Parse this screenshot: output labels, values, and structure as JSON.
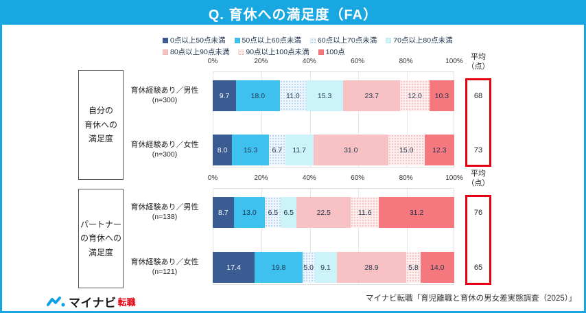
{
  "title": "Q. 育休への満足度（FA）",
  "colors": {
    "title_bar": "#18a7e0",
    "frame": "#18a7e0",
    "red_box": "#e60012",
    "logo_blue": "#0e9fe6",
    "logo_red": "#e60012",
    "segments": [
      {
        "fill": "#3b5c93",
        "text": "#ffffff"
      },
      {
        "fill": "#3fc1f0",
        "text": "#20364f"
      },
      {
        "fill": "#eef5fc",
        "dot": "#a9cfee",
        "text": "#20364f"
      },
      {
        "fill": "#ccf3f9",
        "text": "#20364f"
      },
      {
        "fill": "#f8c2c5",
        "text": "#20364f"
      },
      {
        "fill": "#fdeeee",
        "dot": "#f4b5ba",
        "text": "#20364f"
      },
      {
        "fill": "#f5787e",
        "text": "#20364f"
      }
    ]
  },
  "chart_data": {
    "type": "bar",
    "stacked": true,
    "orientation": "horizontal",
    "unit": "%",
    "x_ticks": [
      "0%",
      "20%",
      "40%",
      "60%",
      "80%",
      "100%"
    ],
    "bands": [
      "0点以上50点未満",
      "50点以上60点未満",
      "60点以上70点未満",
      "70点以上80点未満",
      "80点以上90点未満",
      "90点以上100点未満",
      "100点"
    ],
    "legend_rows": [
      [
        0,
        1,
        2,
        3
      ],
      [
        4,
        5,
        6
      ]
    ],
    "average_header_lines": [
      "平均",
      "（点）"
    ],
    "groups": [
      {
        "group_label": "自分の育休への満足度",
        "group_label_lines": [
          "自分の",
          "育休への",
          "満足度"
        ],
        "rows": [
          {
            "label": "育休経験あり／男性",
            "n": "(n=300)",
            "values": [
              9.7,
              18.0,
              11.0,
              15.3,
              23.7,
              12.0,
              10.3
            ],
            "average": 68
          },
          {
            "label": "育休経験あり／女性",
            "n": "(n=300)",
            "values": [
              8.0,
              15.3,
              6.7,
              11.7,
              31.0,
              15.0,
              12.3
            ],
            "average": 73
          }
        ]
      },
      {
        "group_label": "パートナーの育休への満足度",
        "group_label_lines": [
          "パートナー",
          "の育休への",
          "満足度"
        ],
        "rows": [
          {
            "label": "育休経験あり／男性",
            "n": "(n=138)",
            "values": [
              8.7,
              13.0,
              6.5,
              6.5,
              22.5,
              11.6,
              31.2
            ],
            "average": 76
          },
          {
            "label": "育休経験あり／女性",
            "n": "(n=121)",
            "values": [
              17.4,
              19.8,
              5.0,
              9.1,
              28.9,
              5.8,
              14.0
            ],
            "average": 65
          }
        ]
      }
    ]
  },
  "footer": {
    "logo_text": "マイナビ",
    "logo_suffix": "転職",
    "citation": "マイナビ転職「育児離職と育休の男女差実態調査（2025）」"
  }
}
